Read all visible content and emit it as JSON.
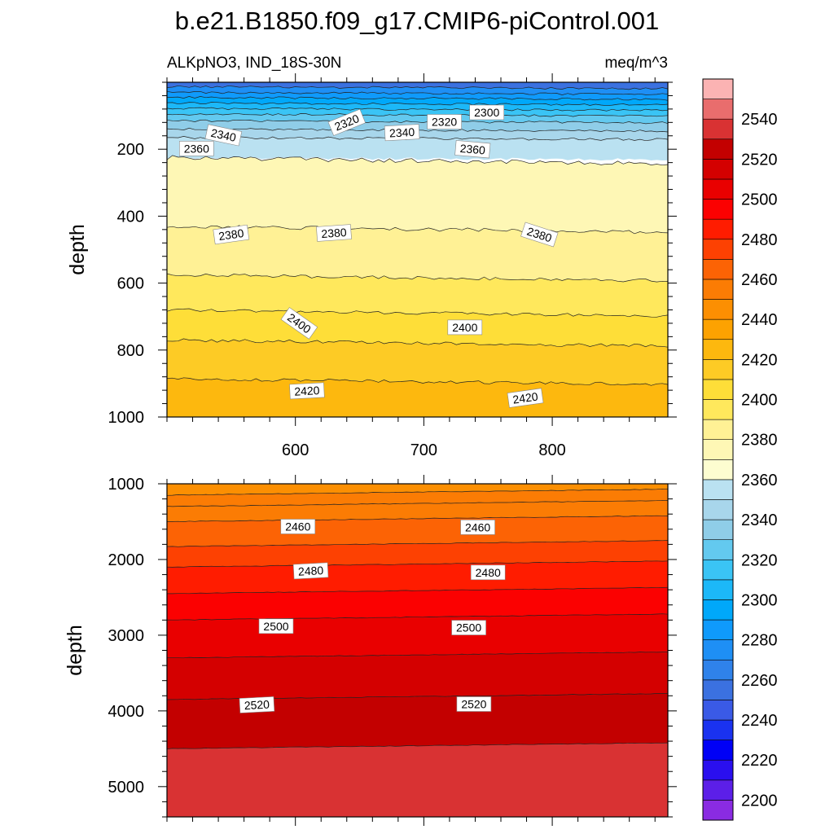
{
  "chart_data": {
    "type": "contour",
    "title": "b.e21.B1850.f09_g17.CMIP6-piControl.001",
    "variable": "ALKpNO3, IND_18S-30N",
    "units": "meq/m^3",
    "ylabel": "depth",
    "x_ticks": [
      600,
      700,
      800
    ],
    "x_range": [
      500,
      890
    ],
    "upper_panel": {
      "ylim": [
        0,
        1000
      ],
      "y_ticks": [
        200,
        400,
        600,
        800,
        1000
      ],
      "layers": [
        {
          "top": 0,
          "bottom": 13,
          "value": 2250
        },
        {
          "top": 13,
          "bottom": 30,
          "value": 2270
        },
        {
          "top": 30,
          "bottom": 45,
          "value": 2285
        },
        {
          "top": 45,
          "bottom": 62,
          "value": 2295
        },
        {
          "top": 62,
          "bottom": 78,
          "value": 2305
        },
        {
          "top": 78,
          "bottom": 95,
          "value": 2315
        },
        {
          "top": 95,
          "bottom": 115,
          "value": 2325
        },
        {
          "top": 115,
          "bottom": 140,
          "value": 2335
        },
        {
          "top": 140,
          "bottom": 165,
          "value": 2345
        },
        {
          "top": 165,
          "bottom": 225,
          "value": 2355
        },
        {
          "top": 225,
          "bottom": 430,
          "value": 2375
        },
        {
          "top": 430,
          "bottom": 575,
          "value": 2385
        },
        {
          "top": 575,
          "bottom": 680,
          "value": 2395
        },
        {
          "top": 680,
          "bottom": 770,
          "value": 2405
        },
        {
          "top": 770,
          "bottom": 885,
          "value": 2415
        },
        {
          "top": 885,
          "bottom": 1000,
          "value": 2425
        }
      ],
      "contour_labels": [
        {
          "text": "2300",
          "x": 749,
          "y": 90,
          "angle": 0
        },
        {
          "text": "2320",
          "x": 640,
          "y": 120,
          "angle": -22
        },
        {
          "text": "2320",
          "x": 716,
          "y": 118,
          "angle": 0
        },
        {
          "text": "2340",
          "x": 544,
          "y": 158,
          "angle": 12
        },
        {
          "text": "2340",
          "x": 683,
          "y": 150,
          "angle": -3
        },
        {
          "text": "2360",
          "x": 523,
          "y": 198,
          "angle": 0
        },
        {
          "text": "2360",
          "x": 738,
          "y": 200,
          "angle": 5
        },
        {
          "text": "2380",
          "x": 550,
          "y": 455,
          "angle": -8
        },
        {
          "text": "2380",
          "x": 630,
          "y": 450,
          "angle": -4
        },
        {
          "text": "2380",
          "x": 790,
          "y": 455,
          "angle": 18
        },
        {
          "text": "2400",
          "x": 603,
          "y": 720,
          "angle": 35
        },
        {
          "text": "2400",
          "x": 732,
          "y": 732,
          "angle": 0
        },
        {
          "text": "2420",
          "x": 609,
          "y": 922,
          "angle": -3
        },
        {
          "text": "2420",
          "x": 779,
          "y": 943,
          "angle": -8
        }
      ]
    },
    "lower_panel": {
      "ylim": [
        1000,
        5400
      ],
      "y_ticks": [
        1000,
        2000,
        3000,
        4000,
        5000
      ],
      "layers": [
        {
          "top": 1000,
          "bottom": 1150,
          "value": 2445
        },
        {
          "top": 1150,
          "bottom": 1300,
          "value": 2450
        },
        {
          "top": 1300,
          "bottom": 1500,
          "value": 2455
        },
        {
          "top": 1500,
          "bottom": 1830,
          "value": 2465
        },
        {
          "top": 1830,
          "bottom": 2100,
          "value": 2475
        },
        {
          "top": 2100,
          "bottom": 2450,
          "value": 2485
        },
        {
          "top": 2450,
          "bottom": 2800,
          "value": 2495
        },
        {
          "top": 2800,
          "bottom": 3300,
          "value": 2505
        },
        {
          "top": 3300,
          "bottom": 3850,
          "value": 2515
        },
        {
          "top": 3850,
          "bottom": 4500,
          "value": 2525
        },
        {
          "top": 4500,
          "bottom": 5400,
          "value": 2535
        }
      ],
      "contour_labels": [
        {
          "text": "2460",
          "x": 602,
          "y": 1565,
          "angle": 0
        },
        {
          "text": "2460",
          "x": 742,
          "y": 1575,
          "angle": 0
        },
        {
          "text": "2480",
          "x": 612,
          "y": 2150,
          "angle": -3
        },
        {
          "text": "2480",
          "x": 750,
          "y": 2170,
          "angle": 0
        },
        {
          "text": "2500",
          "x": 585,
          "y": 2880,
          "angle": 0
        },
        {
          "text": "2500",
          "x": 735,
          "y": 2900,
          "angle": 0
        },
        {
          "text": "2520",
          "x": 570,
          "y": 3920,
          "angle": -3
        },
        {
          "text": "2520",
          "x": 739,
          "y": 3910,
          "angle": 0
        }
      ]
    },
    "colorbar": {
      "levels": [
        2200,
        2210,
        2220,
        2230,
        2240,
        2250,
        2260,
        2270,
        2280,
        2290,
        2300,
        2310,
        2320,
        2330,
        2340,
        2350,
        2360,
        2370,
        2380,
        2390,
        2400,
        2410,
        2420,
        2430,
        2440,
        2450,
        2460,
        2470,
        2480,
        2490,
        2500,
        2510,
        2520,
        2530,
        2540,
        2550
      ],
      "labels": [
        2200,
        2220,
        2240,
        2260,
        2280,
        2300,
        2320,
        2340,
        2360,
        2380,
        2400,
        2420,
        2440,
        2460,
        2480,
        2500,
        2520,
        2540
      ],
      "colors": [
        "#8a2be2",
        "#5c1fe8",
        "#2a0fef",
        "#0000f6",
        "#1a32f0",
        "#3a5ae6",
        "#3b71e0",
        "#2f82ea",
        "#1e8ff5",
        "#0f9afc",
        "#00a8fa",
        "#1cb8f8",
        "#3ac4f5",
        "#63c9ef",
        "#8fcde8",
        "#a8d6eb",
        "#bae1f1",
        "#fdfdd0",
        "#fef7b5",
        "#fff195",
        "#ffe85c",
        "#fede38",
        "#fdcb25",
        "#fdb80e",
        "#fda201",
        "#fc8f02",
        "#fb7c04",
        "#fc6305",
        "#fd4102",
        "#ff1c00",
        "#fb0101",
        "#e90000",
        "#d40000",
        "#c30000",
        "#d93233",
        "#e96d6d",
        "#fbb3b3"
      ]
    }
  }
}
